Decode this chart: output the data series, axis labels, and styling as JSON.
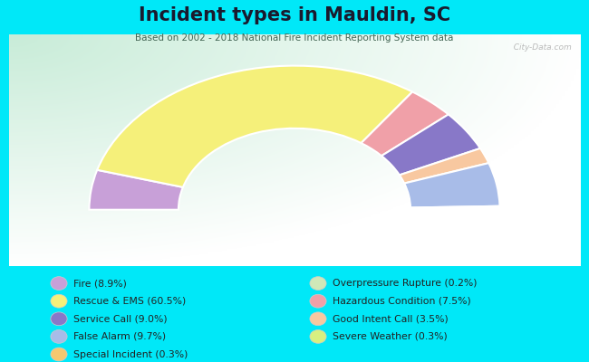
{
  "title": "Incident types in Mauldin, SC",
  "subtitle": "Based on 2002 - 2018 National Fire Incident Reporting System data",
  "bg_color": "#00e8f8",
  "chart_bg_colors": [
    "#c8ecd8",
    "#e8f8f0",
    "#f0f8f4",
    "#ffffff"
  ],
  "categories": [
    "Fire",
    "Rescue & EMS",
    "Service Call",
    "False Alarm",
    "Special Incident",
    "Overpressure Rupture",
    "Hazardous Condition",
    "Good Intent Call",
    "Severe Weather"
  ],
  "values": [
    8.9,
    60.5,
    9.0,
    9.7,
    0.3,
    0.2,
    7.5,
    3.5,
    0.3
  ],
  "colors": [
    "#c8a0d8",
    "#f5f07a",
    "#8878c8",
    "#a8bce8",
    "#f5c870",
    "#d0e8b8",
    "#f0a0a8",
    "#f8c8a0",
    "#d8f080"
  ],
  "legend_labels": [
    "Fire (8.9%)",
    "Rescue & EMS (60.5%)",
    "Service Call (9.0%)",
    "False Alarm (9.7%)",
    "Special Incident (0.3%)",
    "Overpressure Rupture (0.2%)",
    "Hazardous Condition (7.5%)",
    "Good Intent Call (3.5%)",
    "Severe Weather (0.3%)"
  ],
  "wedge_order": [
    0,
    1,
    6,
    2,
    7,
    3,
    8,
    5,
    4
  ],
  "outer_r": 1.15,
  "inner_r": 0.65,
  "watermark": "  City-Data.com"
}
